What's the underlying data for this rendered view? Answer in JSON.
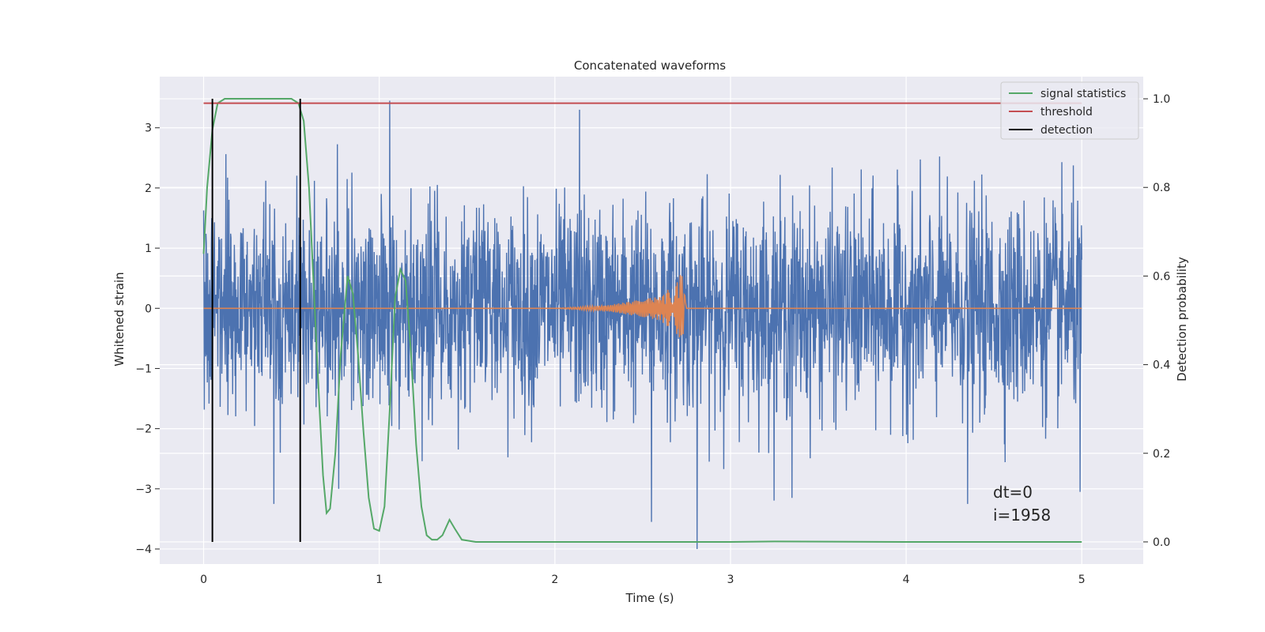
{
  "chart_data": {
    "type": "line",
    "title": "Concatenated waveforms",
    "xlabel": "Time (s)",
    "ylabel": "Whitened strain",
    "y2label": "Detection probability",
    "xlim": [
      -0.25,
      5.35
    ],
    "ylim": [
      -4.25,
      3.85
    ],
    "y2lim": [
      -0.05,
      1.05
    ],
    "xticks": [
      0,
      1,
      2,
      3,
      4,
      5
    ],
    "yticks": [
      -4,
      -3,
      -2,
      -1,
      0,
      1,
      2,
      3
    ],
    "y2ticks": [
      0.0,
      0.2,
      0.4,
      0.6,
      0.8,
      1.0
    ],
    "xtick_labels": [
      "0",
      "1",
      "2",
      "3",
      "4",
      "5"
    ],
    "ytick_labels": [
      "−4",
      "−3",
      "−2",
      "−1",
      "0",
      "1",
      "2",
      "3"
    ],
    "y2tick_labels": [
      "0.0",
      "0.2",
      "0.4",
      "0.6",
      "0.8",
      "1.0"
    ],
    "grid": true,
    "legend_position": "top-right",
    "legend": [
      {
        "label": "signal statistics",
        "color": "#55a868"
      },
      {
        "label": "threshold",
        "color": "#c44e52"
      },
      {
        "label": "detection",
        "color": "#000000"
      }
    ],
    "annotations": [
      "dt=0",
      "i=1958"
    ],
    "series": [
      {
        "name": "",
        "axis": "left",
        "color": "#4c72b0",
        "kind": "noise",
        "x_range": [
          0,
          5
        ],
        "typical_amplitude": 1.0,
        "peak_max": 3.5,
        "peak_min": -4.0,
        "outliers": [
          {
            "x": 0.4,
            "y": -3.25
          },
          {
            "x": 0.77,
            "y": -3.0
          },
          {
            "x": 1.06,
            "y": 3.45
          },
          {
            "x": 2.55,
            "y": -3.55
          },
          {
            "x": 2.81,
            "y": -4.0
          },
          {
            "x": 2.14,
            "y": 3.3
          },
          {
            "x": 3.35,
            "y": -3.15
          },
          {
            "x": 4.35,
            "y": -3.25
          },
          {
            "x": 4.99,
            "y": -3.05
          }
        ]
      },
      {
        "name": "",
        "axis": "left",
        "color": "#dd8452",
        "kind": "chirp",
        "x": [
          0,
          2.0,
          2.3,
          2.6,
          2.7,
          2.72,
          2.75,
          5.0
        ],
        "y": [
          0,
          0,
          0.05,
          0.2,
          0.45,
          0.65,
          0,
          0
        ]
      },
      {
        "name": "signal statistics",
        "axis": "right",
        "color": "#55a868",
        "x": [
          0.0,
          0.02,
          0.05,
          0.08,
          0.12,
          0.2,
          0.5,
          0.54,
          0.57,
          0.6,
          0.63,
          0.66,
          0.68,
          0.7,
          0.72,
          0.75,
          0.78,
          0.82,
          0.85,
          0.88,
          0.91,
          0.94,
          0.97,
          1.0,
          1.03,
          1.06,
          1.09,
          1.12,
          1.15,
          1.18,
          1.21,
          1.24,
          1.27,
          1.3,
          1.33,
          1.36,
          1.4,
          1.43,
          1.47,
          1.55,
          2.0,
          3.0,
          3.25,
          4.0,
          5.0
        ],
        "y": [
          0.65,
          0.8,
          0.93,
          0.99,
          1.0,
          1.0,
          1.0,
          0.99,
          0.95,
          0.8,
          0.55,
          0.3,
          0.15,
          0.065,
          0.075,
          0.2,
          0.42,
          0.6,
          0.56,
          0.42,
          0.25,
          0.1,
          0.03,
          0.025,
          0.08,
          0.3,
          0.55,
          0.615,
          0.59,
          0.43,
          0.22,
          0.08,
          0.015,
          0.005,
          0.005,
          0.015,
          0.05,
          0.03,
          0.005,
          0.0,
          0.0,
          0.0,
          0.001,
          0.0,
          0.0
        ]
      },
      {
        "name": "threshold",
        "axis": "right",
        "color": "#c44e52",
        "x": [
          0,
          5
        ],
        "y": [
          0.99,
          0.99
        ]
      },
      {
        "name": "detection",
        "axis": "right",
        "color": "#000000",
        "kind": "vlines",
        "x": [
          0.05,
          0.55
        ],
        "y_range": [
          0.0,
          1.0
        ]
      }
    ]
  }
}
